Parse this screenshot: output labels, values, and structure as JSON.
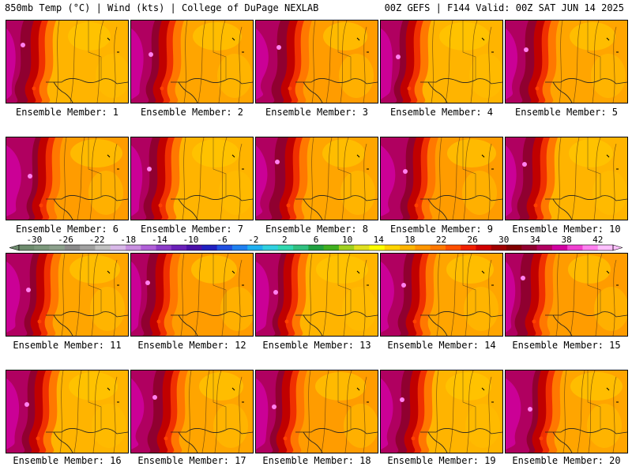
{
  "header": {
    "left": "850mb Temp (°C) | Wind (kts) | College of DuPage NEXLAB",
    "right": "00Z GEFS | F144 Valid: 00Z SAT JUN 14 2025"
  },
  "members": [
    {
      "caption": "Ensemble Member: 1"
    },
    {
      "caption": "Ensemble Member: 2"
    },
    {
      "caption": "Ensemble Member: 3"
    },
    {
      "caption": "Ensemble Member: 4"
    },
    {
      "caption": "Ensemble Member: 5"
    },
    {
      "caption": "Ensemble Member: 6"
    },
    {
      "caption": "Ensemble Member: 7"
    },
    {
      "caption": "Ensemble Member: 8"
    },
    {
      "caption": "Ensemble Member: 9"
    },
    {
      "caption": "Ensemble Member: 10"
    },
    {
      "caption": "Ensemble Member: 11"
    },
    {
      "caption": "Ensemble Member: 12"
    },
    {
      "caption": "Ensemble Member: 13"
    },
    {
      "caption": "Ensemble Member: 14"
    },
    {
      "caption": "Ensemble Member: 15"
    },
    {
      "caption": "Ensemble Member: 16"
    },
    {
      "caption": "Ensemble Member: 17"
    },
    {
      "caption": "Ensemble Member: 18"
    },
    {
      "caption": "Ensemble Member: 19"
    },
    {
      "caption": "Ensemble Member: 20"
    }
  ],
  "colorbar": {
    "labels": [
      "-30",
      "-26",
      "-22",
      "-18",
      "-14",
      "-10",
      "-6",
      "-2",
      "2",
      "6",
      "10",
      "14",
      "18",
      "22",
      "26",
      "30",
      "34",
      "38",
      "42"
    ],
    "colors": [
      "#6e8c6e",
      "#7c987c",
      "#8ca08c",
      "#8a8a8a",
      "#a0a0a0",
      "#c0c0c0",
      "#d8b8e8",
      "#c890e0",
      "#b060d8",
      "#8c3cc8",
      "#6a20b8",
      "#4a10a8",
      "#2020c0",
      "#2050e0",
      "#2080f0",
      "#20b0f0",
      "#30d0e0",
      "#30d8b0",
      "#30c080",
      "#20a040",
      "#40b020",
      "#a0d020",
      "#e0e020",
      "#ffff00",
      "#ffd400",
      "#ffb400",
      "#ff9600",
      "#ff7800",
      "#ff5000",
      "#f02000",
      "#d00000",
      "#a00000",
      "#800000",
      "#900030",
      "#b00060",
      "#d000a0",
      "#f040d0",
      "#ff80f0",
      "#ffc0ff"
    ]
  }
}
